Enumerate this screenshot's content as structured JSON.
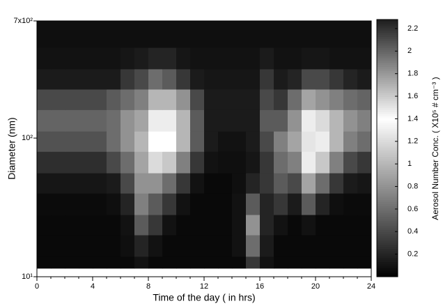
{
  "chart_data": {
    "type": "heatmap",
    "x_label": "Time of the day ( in hrs)",
    "y_label": "Diameter (nm)",
    "colorbar_label": "Aerosol Number Conc. ( X10⁵ # cm⁻³ )",
    "xlim": [
      0,
      24
    ],
    "xticks": [
      0,
      4,
      8,
      12,
      16,
      20,
      24
    ],
    "ylim": [
      10,
      700
    ],
    "yscale": "log",
    "yticks": [
      {
        "value": 10,
        "label": "10¹"
      },
      {
        "value": 100,
        "label": "10²"
      },
      {
        "value": 700,
        "label": "7x10²"
      }
    ],
    "zlim": [
      0,
      2.28
    ],
    "zticks": [
      0.2,
      0.4,
      0.6,
      0.8,
      1,
      1.2,
      1.4,
      1.6,
      1.8,
      2,
      2.2
    ],
    "colormap": [
      {
        "value": 0,
        "color": "#000000"
      },
      {
        "value": 1.4,
        "color": "#ffffff"
      },
      {
        "value": 2.28,
        "color": "#1e1e1e"
      }
    ],
    "x_bins": [
      0,
      1,
      2,
      3,
      4,
      5,
      6,
      7,
      8,
      9,
      10,
      11,
      12,
      13,
      14,
      15,
      16,
      17,
      18,
      19,
      20,
      21,
      22,
      23,
      24
    ],
    "y_bins": [
      11.5,
      14,
      20,
      28,
      40,
      56,
      80,
      112,
      160,
      225,
      315,
      450,
      700
    ],
    "z": [
      [
        0.05,
        0.05,
        0.05,
        0.05,
        0.05,
        0.05,
        0.05,
        0.1,
        0.05,
        0.05,
        0.05,
        0.05,
        0.05,
        0.05,
        0.05,
        0.3,
        0.1,
        0.05,
        0.05,
        0.05,
        0.05,
        0.05,
        0.05,
        0.05
      ],
      [
        0.05,
        0.05,
        0.05,
        0.05,
        0.05,
        0.05,
        0.08,
        0.2,
        0.1,
        0.05,
        0.05,
        0.05,
        0.05,
        0.05,
        0.1,
        0.6,
        0.15,
        0.05,
        0.05,
        0.05,
        0.05,
        0.05,
        0.05,
        0.05
      ],
      [
        0.05,
        0.05,
        0.05,
        0.05,
        0.05,
        0.05,
        0.1,
        0.5,
        0.3,
        0.1,
        0.05,
        0.05,
        0.05,
        0.05,
        0.1,
        0.8,
        0.2,
        0.1,
        0.05,
        0.1,
        0.05,
        0.05,
        0.05,
        0.05
      ],
      [
        0.06,
        0.06,
        0.06,
        0.06,
        0.06,
        0.08,
        0.2,
        0.7,
        0.5,
        0.3,
        0.1,
        0.05,
        0.05,
        0.05,
        0.1,
        0.5,
        0.2,
        0.3,
        0.15,
        0.5,
        0.2,
        0.08,
        0.06,
        0.06
      ],
      [
        0.12,
        0.12,
        0.12,
        0.12,
        0.12,
        0.15,
        0.4,
        0.8,
        0.8,
        0.6,
        0.3,
        0.1,
        0.05,
        0.05,
        0.08,
        0.2,
        0.3,
        0.5,
        0.4,
        0.9,
        0.6,
        0.3,
        0.15,
        0.12
      ],
      [
        0.25,
        0.25,
        0.25,
        0.25,
        0.25,
        0.4,
        0.6,
        0.9,
        1.2,
        1.1,
        0.7,
        0.3,
        0.1,
        0.08,
        0.08,
        0.12,
        0.3,
        0.6,
        0.7,
        1.3,
        1.1,
        0.7,
        0.4,
        0.3
      ],
      [
        0.45,
        0.45,
        0.45,
        0.45,
        0.45,
        0.6,
        0.8,
        1.0,
        1.4,
        1.4,
        1.0,
        0.5,
        0.15,
        0.1,
        0.1,
        0.15,
        0.4,
        0.7,
        0.9,
        1.5,
        1.3,
        1.0,
        0.7,
        0.6
      ],
      [
        0.55,
        0.55,
        0.55,
        0.55,
        0.55,
        0.6,
        0.8,
        0.9,
        1.3,
        1.3,
        1.0,
        0.5,
        0.15,
        0.15,
        0.15,
        0.15,
        0.5,
        0.5,
        0.8,
        1.3,
        1.2,
        1.0,
        0.8,
        0.7
      ],
      [
        0.4,
        0.4,
        0.4,
        0.4,
        0.4,
        0.5,
        0.6,
        0.7,
        1.0,
        1.0,
        0.8,
        0.4,
        0.15,
        0.15,
        0.15,
        0.15,
        0.4,
        0.3,
        0.6,
        0.9,
        0.8,
        0.7,
        0.6,
        0.55
      ],
      [
        0.15,
        0.15,
        0.15,
        0.15,
        0.15,
        0.15,
        0.3,
        0.4,
        0.6,
        0.5,
        0.3,
        0.15,
        0.12,
        0.12,
        0.12,
        0.12,
        0.3,
        0.15,
        0.2,
        0.4,
        0.4,
        0.3,
        0.2,
        0.15
      ],
      [
        0.1,
        0.1,
        0.1,
        0.1,
        0.1,
        0.1,
        0.12,
        0.15,
        0.2,
        0.2,
        0.12,
        0.1,
        0.1,
        0.1,
        0.1,
        0.1,
        0.15,
        0.1,
        0.1,
        0.12,
        0.12,
        0.1,
        0.1,
        0.1
      ],
      [
        0.08,
        0.08,
        0.08,
        0.08,
        0.08,
        0.08,
        0.08,
        0.08,
        0.08,
        0.08,
        0.08,
        0.08,
        0.08,
        0.08,
        0.08,
        0.08,
        0.08,
        0.08,
        0.08,
        0.08,
        0.08,
        0.08,
        0.08,
        0.08
      ]
    ]
  }
}
